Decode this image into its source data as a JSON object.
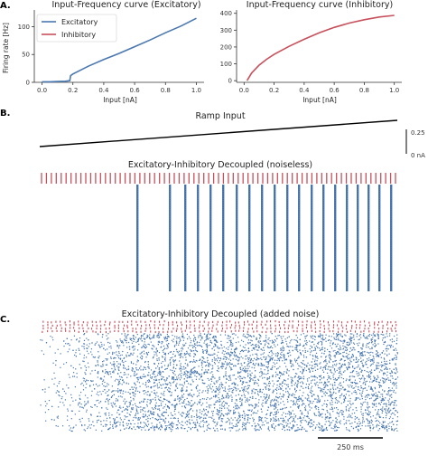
{
  "panels": {
    "a_label": "A.",
    "b_label": "B.",
    "c_label": "C."
  },
  "colors": {
    "excitatory": "#4a78b0",
    "inhibitory": "#c8505c",
    "ramp": "#000000",
    "axis": "#333333"
  },
  "chart_data": [
    {
      "type": "line",
      "title": "Input-Frequency curve (Excitatory)",
      "xlabel": "Input [nA]",
      "ylabel": "Firing rate [Hz]",
      "xlim": [
        -0.05,
        1.05
      ],
      "ylim": [
        0,
        130
      ],
      "xticks": [
        "0.0",
        "0.2",
        "0.4",
        "0.6",
        "0.8",
        "1.0"
      ],
      "yticks": [
        "0",
        "50",
        "100"
      ],
      "legend": "top-left",
      "series": [
        {
          "name": "Excitatory",
          "x": [
            0.0,
            0.05,
            0.1,
            0.15,
            0.18,
            0.185,
            0.2,
            0.3,
            0.4,
            0.5,
            0.6,
            0.7,
            0.8,
            0.9,
            1.0
          ],
          "y": [
            1,
            1,
            1.5,
            2,
            3,
            12,
            15,
            29,
            41,
            52,
            64,
            76,
            89,
            101,
            115
          ]
        },
        {
          "name": "Inhibitory",
          "x": [],
          "y": []
        }
      ]
    },
    {
      "type": "line",
      "title": "Input-Frequency curve (Inhibitory)",
      "xlabel": "Input [nA]",
      "ylabel": "",
      "xlim": [
        -0.05,
        1.05
      ],
      "ylim": [
        -10,
        420
      ],
      "xticks": [
        "0.0",
        "0.2",
        "0.4",
        "0.6",
        "0.8",
        "1.0"
      ],
      "yticks": [
        "0",
        "100",
        "200",
        "300",
        "400"
      ],
      "series": [
        {
          "x": [
            0.02,
            0.05,
            0.1,
            0.15,
            0.2,
            0.3,
            0.4,
            0.5,
            0.6,
            0.7,
            0.8,
            0.9,
            1.0
          ],
          "y": [
            0,
            45,
            92,
            127,
            156,
            204,
            246,
            284,
            316,
            342,
            362,
            378,
            388
          ]
        }
      ]
    },
    {
      "type": "line",
      "title": "Ramp Input",
      "scalebar": [
        "0.25",
        "0 nA"
      ]
    },
    {
      "type": "scatter",
      "title": "Excitatory-Inhibitory Decoupled (noiseless)",
      "inhibitory_spike_columns": 73,
      "excitatory_burst_columns": 20
    },
    {
      "type": "scatter",
      "title": "Excitatory-Inhibitory Decoupled (added noise)",
      "time_scalebar": "250 ms"
    }
  ]
}
